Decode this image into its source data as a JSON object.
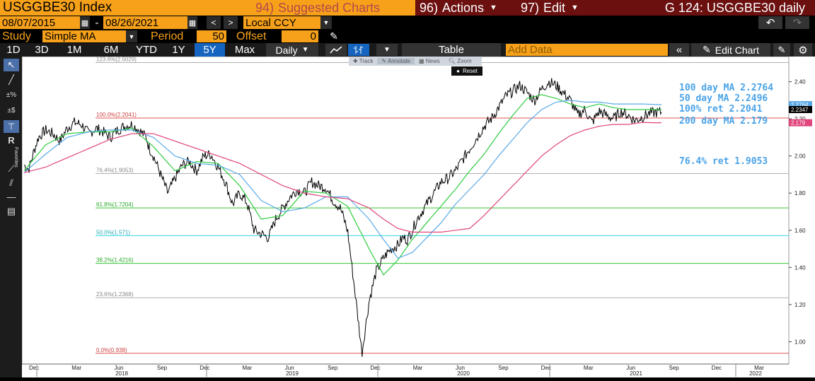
{
  "header": {
    "ticker": "USGGBE30 Index",
    "suggested": "Suggested Charts",
    "suggested_num": "94)",
    "actions": "Actions",
    "actions_num": "96)",
    "edit": "Edit",
    "edit_num": "97)",
    "chart_title": "G 124: USGGBE30 daily"
  },
  "controls": {
    "start_date": "08/07/2015",
    "dash": "-",
    "end_date": "08/26/2021",
    "currency": "Local CCY",
    "study_label": "Study",
    "study_value": "Simple MA",
    "period_label": "Period",
    "period_value": "50",
    "offset_label": "Offset",
    "offset_value": "0",
    "ranges": [
      "1D",
      "3D",
      "1M",
      "6M",
      "YTD",
      "1Y",
      "5Y",
      "Max"
    ],
    "selected_range": "5Y",
    "frequency": "Daily",
    "table": "Table",
    "add_data": "Add Data",
    "edit_chart": "Edit Chart"
  },
  "toolbar_overlay": {
    "track": "Track",
    "annotate": "Annotate",
    "news": "News",
    "zoom": "Zoom",
    "reset": "Reset"
  },
  "left_tools": {
    "favorites": "Favorites"
  },
  "colors": {
    "price": "#000000",
    "ma50": "#2ecc40",
    "ma100": "#5aa9e6",
    "ma200": "#e0457b",
    "fib_0": "#e05555",
    "fib_100": "#e05555",
    "fib_23_6": "#b0b0b0",
    "fib_38_2": "#38c638",
    "fib_50": "#33d6e0",
    "fib_61_8": "#38c638",
    "fib_76_4": "#b0b0b0",
    "fib_123_6": "#b0b0b0"
  },
  "chart_data": {
    "type": "line",
    "ylim": [
      0.88,
      2.52
    ],
    "y_ticks": [
      "2.40",
      "2.20",
      "2.00",
      "1.80",
      "1.60",
      "1.40",
      "1.20",
      "1.00"
    ],
    "month_labels": [
      "Dec",
      "Mar",
      "Jun",
      "Sep",
      "Dec",
      "Mar",
      "Jun",
      "Sep",
      "Dec",
      "Mar",
      "Jun",
      "Sep",
      "Dec",
      "Mar",
      "Jun",
      "Sep",
      "Dec",
      "Mar"
    ],
    "year_labels": [
      "2018",
      "2019",
      "2020",
      "2021",
      "2022"
    ],
    "fib_levels": [
      {
        "label": "123.6%(2.5029)",
        "value": 2.5029,
        "key": "fib_123_6"
      },
      {
        "label": "100.0%(2.2041)",
        "value": 2.2041,
        "key": "fib_100"
      },
      {
        "label": "76.4%(1.9053)",
        "value": 1.9053,
        "key": "fib_76_4"
      },
      {
        "label": "61.8%(1.7204)",
        "value": 1.7204,
        "key": "fib_61_8"
      },
      {
        "label": "50.0%(1.571)",
        "value": 1.571,
        "key": "fib_50"
      },
      {
        "label": "38.2%(1.4216)",
        "value": 1.4216,
        "key": "fib_38_2"
      },
      {
        "label": "23.6%(1.2368)",
        "value": 1.2368,
        "key": "fib_23_6"
      },
      {
        "label": "0.0%(0.938)",
        "value": 0.938,
        "key": "fib_0"
      }
    ],
    "last_price": {
      "label": "2.2347",
      "value": 2.2347
    },
    "right_tags": [
      {
        "label": "2.2764",
        "value": 2.2764,
        "key": "ma100"
      },
      {
        "label": "2.179",
        "value": 2.179,
        "key": "ma200"
      }
    ],
    "annotations": [
      {
        "text": "100 day MA 2.2764"
      },
      {
        "text": "50 day MA 2.2496"
      },
      {
        "text": "100% ret 2.2041"
      },
      {
        "text": "200 day MA 2.179"
      },
      {
        "text": "76.4% ret 1.9053"
      }
    ],
    "series": [
      {
        "key": "price",
        "t": [
          0,
          2,
          4,
          6,
          9,
          12,
          15,
          18,
          21,
          24,
          27,
          30,
          33,
          36,
          39,
          42,
          45,
          48,
          51,
          52,
          54,
          57,
          60,
          63,
          66,
          69,
          72,
          75,
          78,
          81,
          84,
          87,
          90,
          93,
          96,
          99,
          102,
          105,
          108,
          111,
          114,
          117,
          120,
          123,
          126,
          129,
          132,
          135,
          138,
          141,
          144,
          147,
          150,
          153,
          156,
          158,
          160,
          162,
          164,
          166,
          168,
          170,
          172,
          174,
          177,
          180,
          183,
          186,
          189,
          192,
          195,
          198,
          201,
          204,
          207,
          210,
          213,
          216,
          219,
          222,
          225,
          228,
          231,
          234,
          237,
          240,
          243,
          246,
          249,
          252,
          255,
          258,
          261,
          264,
          266
        ],
        "v": [
          1.95,
          1.93,
          2.02,
          2.1,
          2.14,
          2.12,
          2.08,
          2.15,
          2.18,
          2.17,
          2.12,
          2.15,
          2.13,
          2.1,
          2.14,
          2.16,
          2.17,
          2.14,
          2.1,
          2.05,
          2.0,
          1.9,
          1.8,
          1.88,
          1.95,
          1.97,
          1.92,
          2.0,
          2.01,
          1.94,
          1.86,
          1.74,
          1.8,
          1.75,
          1.6,
          1.58,
          1.56,
          1.66,
          1.72,
          1.78,
          1.82,
          1.8,
          1.86,
          1.84,
          1.83,
          1.76,
          1.72,
          1.6,
          1.28,
          0.94,
          1.22,
          1.38,
          1.45,
          1.5,
          1.52,
          1.56,
          1.55,
          1.6,
          1.66,
          1.7,
          1.74,
          1.78,
          1.82,
          1.86,
          1.88,
          1.92,
          1.98,
          2.04,
          2.1,
          2.16,
          2.2,
          2.26,
          2.32,
          2.35,
          2.38,
          2.34,
          2.3,
          2.36,
          2.4,
          2.38,
          2.34,
          2.3,
          2.22,
          2.25,
          2.18,
          2.24,
          2.22,
          2.2,
          2.24,
          2.22,
          2.19,
          2.21,
          2.23,
          2.235,
          2.2347
        ]
      },
      {
        "key": "ma50",
        "t": [
          0,
          9,
          18,
          27,
          36,
          45,
          54,
          63,
          72,
          81,
          90,
          99,
          108,
          117,
          126,
          135,
          144,
          150,
          156,
          162,
          168,
          174,
          180,
          186,
          192,
          198,
          204,
          210,
          216,
          222,
          228,
          234,
          240,
          246,
          252,
          258,
          264,
          266
        ],
        "v": [
          1.92,
          2.06,
          2.12,
          2.13,
          2.13,
          2.15,
          2.05,
          1.92,
          1.97,
          1.96,
          1.84,
          1.66,
          1.68,
          1.81,
          1.8,
          1.73,
          1.5,
          1.36,
          1.44,
          1.55,
          1.64,
          1.73,
          1.82,
          1.92,
          2.01,
          2.12,
          2.22,
          2.31,
          2.33,
          2.31,
          2.28,
          2.26,
          2.28,
          2.26,
          2.25,
          2.25,
          2.2496,
          2.2496
        ]
      },
      {
        "key": "ma100",
        "t": [
          0,
          9,
          18,
          27,
          36,
          45,
          54,
          63,
          72,
          81,
          90,
          99,
          108,
          117,
          126,
          135,
          144,
          150,
          156,
          162,
          168,
          174,
          180,
          186,
          192,
          198,
          204,
          210,
          216,
          222,
          228,
          234,
          240,
          246,
          252,
          258,
          264,
          266
        ],
        "v": [
          1.91,
          2.01,
          2.1,
          2.13,
          2.14,
          2.14,
          2.1,
          2.0,
          1.96,
          1.95,
          1.9,
          1.76,
          1.7,
          1.72,
          1.78,
          1.78,
          1.66,
          1.55,
          1.45,
          1.48,
          1.56,
          1.64,
          1.74,
          1.82,
          1.9,
          2.0,
          2.09,
          2.18,
          2.25,
          2.29,
          2.3,
          2.29,
          2.29,
          2.28,
          2.28,
          2.28,
          2.2764,
          2.2764
        ]
      },
      {
        "key": "ma200",
        "t": [
          0,
          9,
          18,
          27,
          36,
          45,
          54,
          63,
          72,
          81,
          90,
          99,
          108,
          117,
          126,
          135,
          144,
          150,
          156,
          162,
          168,
          174,
          180,
          186,
          192,
          198,
          204,
          210,
          216,
          222,
          228,
          234,
          240,
          246,
          252,
          258,
          264,
          266
        ],
        "v": [
          1.91,
          1.94,
          1.99,
          2.04,
          2.09,
          2.12,
          2.12,
          2.08,
          2.04,
          2.0,
          1.96,
          1.9,
          1.84,
          1.8,
          1.78,
          1.77,
          1.72,
          1.66,
          1.61,
          1.59,
          1.59,
          1.59,
          1.6,
          1.61,
          1.68,
          1.76,
          1.84,
          1.92,
          2.0,
          2.06,
          2.11,
          2.14,
          2.16,
          2.17,
          2.17,
          2.18,
          2.179,
          2.179
        ]
      }
    ]
  }
}
